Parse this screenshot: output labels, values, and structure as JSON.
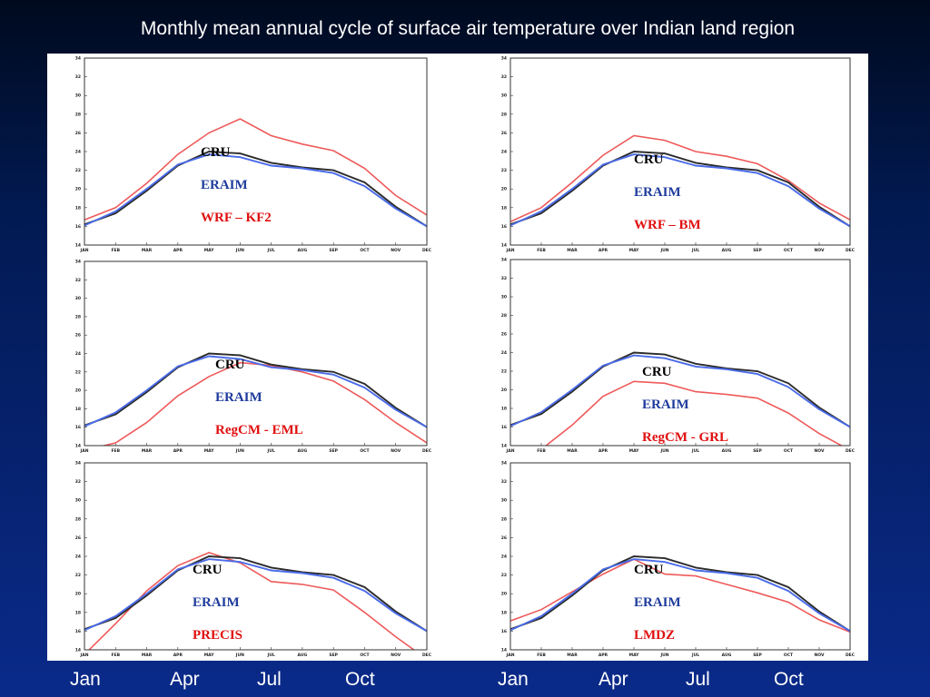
{
  "slide": {
    "title": "Monthly mean annual cycle of surface air temperature over Indian land region",
    "bottom_month_labels": [
      "Jan",
      "Apr",
      "Jul",
      "Oct",
      "Jan",
      "Apr",
      "Jul",
      "Oct"
    ]
  },
  "colors": {
    "CRU": "#2b2b2b",
    "ERAIM": "#4a6be8",
    "model": "#ee5a5a",
    "legend_CRU": "#000000",
    "legend_ERAIM": "#1f3c9c",
    "legend_model": "#e01010"
  },
  "chart_data": [
    {
      "type": "line",
      "panel": "top-left",
      "categories": [
        "JAN",
        "FEB",
        "MAR",
        "APR",
        "MAY",
        "JUN",
        "JUL",
        "AUG",
        "SEP",
        "OCT",
        "NOV",
        "DEC"
      ],
      "ytick_labels": [
        "14",
        "16",
        "18",
        "20",
        "22",
        "24",
        "26",
        "28",
        "30",
        "32",
        "34"
      ],
      "ylim": [
        14,
        34
      ],
      "legend": [
        "CRU",
        "ERAIM",
        "WRF – KF2"
      ],
      "series": [
        {
          "name": "CRU",
          "values": [
            16.2,
            17.4,
            19.8,
            22.5,
            24.0,
            23.8,
            22.8,
            22.3,
            22.0,
            20.7,
            18.1,
            16.0
          ]
        },
        {
          "name": "ERAIM",
          "values": [
            16.1,
            17.6,
            20.0,
            22.6,
            23.7,
            23.4,
            22.5,
            22.2,
            21.7,
            20.3,
            17.9,
            16.0
          ]
        },
        {
          "name": "WRF – KF2",
          "values": [
            16.7,
            18.0,
            20.6,
            23.7,
            26.0,
            27.5,
            25.7,
            24.8,
            24.1,
            22.2,
            19.3,
            17.2
          ]
        }
      ]
    },
    {
      "type": "line",
      "panel": "top-right",
      "categories": [
        "JAN",
        "FEB",
        "MAR",
        "APR",
        "MAY",
        "JUN",
        "JUL",
        "AUG",
        "SEP",
        "OCT",
        "NOV",
        "DEC"
      ],
      "ytick_labels": [
        "14",
        "16",
        "18",
        "20",
        "22",
        "24",
        "26",
        "28",
        "30",
        "32",
        "34"
      ],
      "ylim": [
        14,
        34
      ],
      "legend": [
        "CRU",
        "ERAIM",
        "WRF – BM"
      ],
      "series": [
        {
          "name": "CRU",
          "values": [
            16.2,
            17.4,
            19.8,
            22.5,
            24.0,
            23.8,
            22.8,
            22.3,
            22.0,
            20.7,
            18.1,
            16.0
          ]
        },
        {
          "name": "ERAIM",
          "values": [
            16.1,
            17.6,
            20.0,
            22.6,
            23.7,
            23.4,
            22.5,
            22.2,
            21.7,
            20.3,
            17.9,
            16.0
          ]
        },
        {
          "name": "WRF – BM",
          "values": [
            16.5,
            18.0,
            20.7,
            23.6,
            25.7,
            25.2,
            24.0,
            23.5,
            22.7,
            20.9,
            18.5,
            16.7
          ]
        }
      ]
    },
    {
      "type": "line",
      "panel": "middle-left",
      "categories": [
        "JAN",
        "FEB",
        "MAR",
        "APR",
        "MAY",
        "JUN",
        "JUL",
        "AUG",
        "SEP",
        "OCT",
        "NOV",
        "DEC"
      ],
      "ytick_labels": [
        "14",
        "16",
        "18",
        "20",
        "22",
        "24",
        "26",
        "28",
        "30",
        "32",
        "34"
      ],
      "ylim": [
        14,
        34
      ],
      "legend": [
        "CRU",
        "ERAIM",
        "RegCM - EML"
      ],
      "series": [
        {
          "name": "CRU",
          "values": [
            16.2,
            17.4,
            19.8,
            22.5,
            24.0,
            23.8,
            22.8,
            22.3,
            22.0,
            20.7,
            18.1,
            16.0
          ]
        },
        {
          "name": "ERAIM",
          "values": [
            16.1,
            17.6,
            20.0,
            22.6,
            23.7,
            23.4,
            22.5,
            22.2,
            21.7,
            20.3,
            17.9,
            16.0
          ]
        },
        {
          "name": "RegCM - EML",
          "values": [
            13.5,
            14.3,
            16.5,
            19.4,
            21.5,
            23.0,
            22.7,
            22.0,
            21.0,
            19.0,
            16.5,
            14.3
          ]
        }
      ]
    },
    {
      "type": "line",
      "panel": "middle-right",
      "categories": [
        "JAN",
        "FEB",
        "MAR",
        "APR",
        "MAY",
        "JUN",
        "JUL",
        "AUG",
        "SEP",
        "OCT",
        "NOV",
        "DEC"
      ],
      "ytick_labels": [
        "14",
        "16",
        "18",
        "20",
        "22",
        "24",
        "26",
        "28",
        "30",
        "32",
        "34"
      ],
      "ylim": [
        14,
        34
      ],
      "legend": [
        "CRU",
        "ERAIM",
        "RegCM - GRL"
      ],
      "series": [
        {
          "name": "CRU",
          "values": [
            16.2,
            17.4,
            19.8,
            22.5,
            24.0,
            23.8,
            22.8,
            22.3,
            22.0,
            20.7,
            18.1,
            16.0
          ]
        },
        {
          "name": "ERAIM",
          "values": [
            16.1,
            17.6,
            20.0,
            22.6,
            23.7,
            23.4,
            22.5,
            22.2,
            21.7,
            20.3,
            17.9,
            16.0
          ]
        },
        {
          "name": "RegCM - GRL",
          "values": [
            12.5,
            13.6,
            16.2,
            19.3,
            20.9,
            20.7,
            19.8,
            19.5,
            19.1,
            17.5,
            15.3,
            13.5
          ]
        }
      ]
    },
    {
      "type": "line",
      "panel": "bottom-left",
      "categories": [
        "JAN",
        "FEB",
        "MAR",
        "APR",
        "MAY",
        "JUN",
        "JUL",
        "AUG",
        "SEP",
        "OCT",
        "NOV",
        "DEC"
      ],
      "ytick_labels": [
        "14",
        "16",
        "18",
        "20",
        "22",
        "24",
        "26",
        "28",
        "30",
        "32",
        "34"
      ],
      "ylim": [
        14,
        34
      ],
      "legend": [
        "CRU",
        "ERAIM",
        "PRECIS"
      ],
      "series": [
        {
          "name": "CRU",
          "values": [
            16.2,
            17.4,
            19.8,
            22.5,
            24.0,
            23.8,
            22.8,
            22.3,
            22.0,
            20.7,
            18.1,
            16.0
          ]
        },
        {
          "name": "ERAIM",
          "values": [
            16.1,
            17.6,
            20.0,
            22.6,
            23.7,
            23.4,
            22.5,
            22.2,
            21.7,
            20.3,
            17.9,
            16.0
          ]
        },
        {
          "name": "PRECIS",
          "values": [
            13.5,
            16.8,
            20.3,
            23.0,
            24.4,
            23.3,
            21.3,
            21.0,
            20.4,
            18.0,
            15.4,
            13.0
          ]
        }
      ]
    },
    {
      "type": "line",
      "panel": "bottom-right",
      "categories": [
        "JAN",
        "FEB",
        "MAR",
        "APR",
        "MAY",
        "JUN",
        "JUL",
        "AUG",
        "SEP",
        "OCT",
        "NOV",
        "DEC"
      ],
      "ytick_labels": [
        "14",
        "16",
        "18",
        "20",
        "22",
        "24",
        "26",
        "28",
        "30",
        "32",
        "34"
      ],
      "ylim": [
        14,
        34
      ],
      "legend": [
        "CRU",
        "ERAIM",
        "LMDZ"
      ],
      "series": [
        {
          "name": "CRU",
          "values": [
            16.2,
            17.4,
            19.8,
            22.5,
            24.0,
            23.8,
            22.8,
            22.3,
            22.0,
            20.7,
            18.1,
            16.0
          ]
        },
        {
          "name": "ERAIM",
          "values": [
            16.1,
            17.6,
            20.0,
            22.6,
            23.7,
            23.4,
            22.5,
            22.2,
            21.7,
            20.3,
            17.9,
            16.0
          ]
        },
        {
          "name": "LMDZ",
          "values": [
            17.1,
            18.3,
            20.2,
            22.1,
            23.7,
            22.1,
            21.9,
            21.0,
            20.1,
            19.1,
            17.2,
            15.9
          ]
        }
      ]
    }
  ]
}
